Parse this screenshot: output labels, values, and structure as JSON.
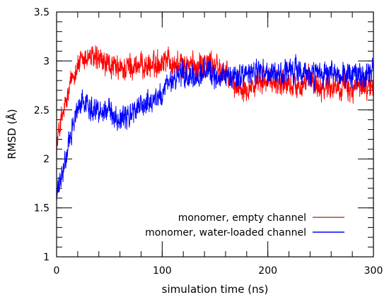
{
  "chart_data": {
    "type": "line",
    "xlabel": "simulation time (ns)",
    "ylabel": "RMSD (Å)",
    "xlim": [
      0,
      300
    ],
    "ylim": [
      1,
      3.5
    ],
    "x_ticks": [
      0,
      100,
      200,
      300
    ],
    "x_tick_labels": [
      "0",
      "100",
      "200",
      "300"
    ],
    "y_ticks": [
      1,
      1.5,
      2,
      2.5,
      3,
      3.5
    ],
    "y_tick_labels": [
      "1",
      "1.5",
      "2",
      "2.5",
      "3",
      "3.5"
    ],
    "grid": false,
    "legend_position": "bottom-right",
    "series": [
      {
        "name": "monomer, empty channel",
        "color": "#ff0000",
        "legend_color": "#a0522d",
        "x": [
          0,
          3,
          6,
          10,
          15,
          20,
          25,
          30,
          40,
          50,
          60,
          70,
          80,
          90,
          100,
          105,
          110,
          120,
          130,
          140,
          150,
          160,
          170,
          180,
          190,
          200,
          210,
          220,
          230,
          240,
          250,
          260,
          270,
          280,
          290,
          300
        ],
        "y": [
          2.1,
          2.35,
          2.45,
          2.6,
          2.85,
          2.95,
          3.0,
          3.05,
          3.0,
          2.95,
          2.9,
          2.95,
          2.95,
          2.95,
          3.0,
          3.05,
          2.95,
          2.95,
          2.95,
          3.0,
          2.95,
          2.85,
          2.75,
          2.75,
          2.75,
          2.8,
          2.8,
          2.75,
          2.75,
          2.8,
          2.75,
          2.75,
          2.75,
          2.7,
          2.75,
          2.75
        ],
        "noise": 0.17
      },
      {
        "name": "monomer, water-loaded channel",
        "color": "#0000ff",
        "legend_color": "#0000ff",
        "x": [
          0,
          3,
          6,
          10,
          15,
          20,
          25,
          30,
          40,
          50,
          60,
          70,
          80,
          90,
          100,
          105,
          110,
          120,
          130,
          140,
          150,
          160,
          170,
          180,
          190,
          200,
          210,
          220,
          230,
          240,
          250,
          260,
          270,
          280,
          290,
          300
        ],
        "y": [
          1.6,
          1.75,
          1.85,
          2.05,
          2.35,
          2.5,
          2.6,
          2.55,
          2.5,
          2.5,
          2.4,
          2.45,
          2.55,
          2.6,
          2.65,
          2.75,
          2.8,
          2.85,
          2.8,
          2.9,
          2.85,
          2.85,
          2.85,
          2.85,
          2.9,
          2.85,
          2.85,
          2.9,
          2.9,
          2.85,
          2.85,
          2.85,
          2.85,
          2.85,
          2.85,
          2.9
        ],
        "noise": 0.16
      }
    ]
  }
}
